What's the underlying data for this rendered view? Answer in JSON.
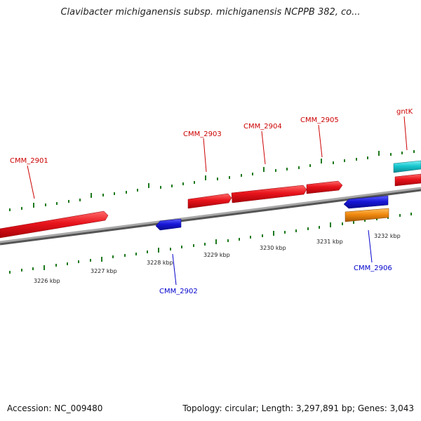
{
  "title": "Clavibacter michiganensis subsp. michiganensis NCPPB 382, co...",
  "footer": {
    "accession": "Accession: NC_009480",
    "summary": "Topology: circular; Length: 3,297,891 bp; Genes: 3,043"
  },
  "colors": {
    "forward_gene": "#e8141c",
    "reverse_gene": "#1a1acc",
    "trna_gene": "#18c8d0",
    "other_gene": "#f08a10",
    "tick": "#1e7a1e",
    "backbone": "#888888",
    "label_forward": "#cc0000",
    "label_reverse": "#0000cc"
  },
  "scale_labels": [
    "3226 kbp",
    "3227 kbp",
    "3228 kbp",
    "3229 kbp",
    "3230 kbp",
    "3231 kbp",
    "3232 kbp"
  ],
  "gene_labels": [
    {
      "id": "cmm2901",
      "text": "CMM_2901",
      "strand": "forward"
    },
    {
      "id": "cmm2902",
      "text": "CMM_2902",
      "strand": "reverse"
    },
    {
      "id": "cmm2903",
      "text": "CMM_2903",
      "strand": "forward"
    },
    {
      "id": "cmm2904",
      "text": "CMM_2904",
      "strand": "forward"
    },
    {
      "id": "cmm2905",
      "text": "CMM_2905",
      "strand": "forward"
    },
    {
      "id": "cmm2906",
      "text": "CMM_2906",
      "strand": "reverse"
    },
    {
      "id": "gntk",
      "text": "gntK",
      "strand": "forward"
    }
  ]
}
